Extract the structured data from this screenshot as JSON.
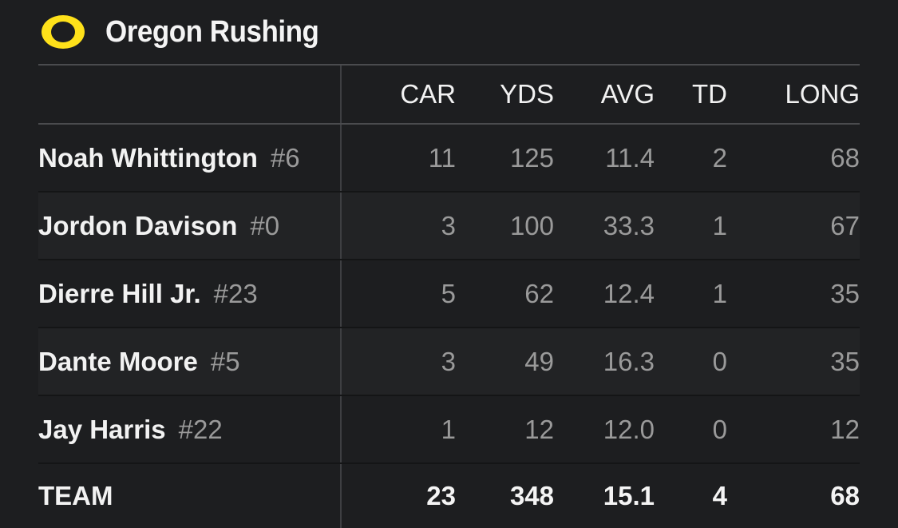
{
  "header": {
    "title": "Oregon Rushing",
    "logo_color": "#fee11a"
  },
  "table": {
    "columns": [
      "CAR",
      "YDS",
      "AVG",
      "TD",
      "LONG"
    ],
    "rows": [
      {
        "name": "Noah Whittington",
        "number": "#6",
        "car": "11",
        "yds": "125",
        "avg": "11.4",
        "td": "2",
        "long": "68"
      },
      {
        "name": "Jordon Davison",
        "number": "#0",
        "car": "3",
        "yds": "100",
        "avg": "33.3",
        "td": "1",
        "long": "67"
      },
      {
        "name": "Dierre Hill Jr.",
        "number": "#23",
        "car": "5",
        "yds": "62",
        "avg": "12.4",
        "td": "1",
        "long": "35"
      },
      {
        "name": "Dante Moore",
        "number": "#5",
        "car": "3",
        "yds": "49",
        "avg": "16.3",
        "td": "0",
        "long": "35"
      },
      {
        "name": "Jay Harris",
        "number": "#22",
        "car": "1",
        "yds": "12",
        "avg": "12.0",
        "td": "0",
        "long": "12"
      }
    ],
    "team": {
      "name": "TEAM",
      "car": "23",
      "yds": "348",
      "avg": "15.1",
      "td": "4",
      "long": "68"
    }
  }
}
